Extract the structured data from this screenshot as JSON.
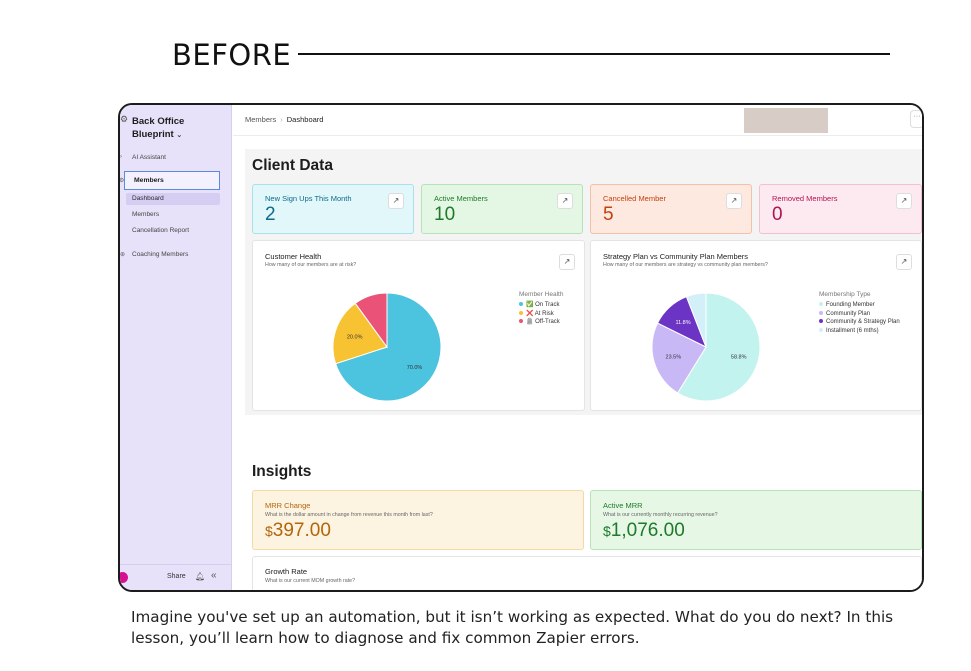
{
  "heading": "BEFORE",
  "caption": "Imagine you've set up an automation, but it isn’t working as expected. What do you do next? In this lesson, you’ll learn how to diagnose and fix common Zapier errors.",
  "sidebar": {
    "workspace": "Back Office Blueprint",
    "workspace_chevron": "⌄",
    "items": {
      "ai_assistant": "AI Assistant",
      "members": "Members",
      "dashboard": "Dashboard",
      "members_sub": "Members",
      "cancellation_report": "Cancellation Report",
      "coaching_members": "Coaching Members"
    },
    "share": "Share"
  },
  "breadcrumb": {
    "parent": "Members",
    "current": "Dashboard"
  },
  "client_data": {
    "title": "Client Data",
    "stats": [
      {
        "label": "New Sign Ups This Month",
        "value": "2",
        "color": "#0e6a8c",
        "bg": "#e1f7fa",
        "border": "#a9e1ea"
      },
      {
        "label": "Active Members",
        "value": "10",
        "color": "#1e7a2a",
        "bg": "#e4f7e4",
        "border": "#b5e3b6"
      },
      {
        "label": "Cancelled Member",
        "value": "5",
        "color": "#c2410c",
        "bg": "#fde9e0",
        "border": "#f3c1a9"
      },
      {
        "label": "Removed Members",
        "value": "0",
        "color": "#b3124e",
        "bg": "#fdeaf1",
        "border": "#f3c0d3"
      }
    ],
    "health_card": {
      "title": "Customer Health",
      "subtitle": "How many of our members are at risk?",
      "legend_title": "Member Health",
      "legend": [
        "✅ On Track",
        "❌ At Risk",
        "🪦 Off-Track"
      ]
    },
    "plan_card": {
      "title": "Strategy Plan vs Community Plan Members",
      "subtitle": "How many of our members are strategy vs community plan members?",
      "legend_title": "Membership Type",
      "legend": [
        "Founding Member",
        "Community Plan",
        "Community & Strategy Plan",
        "Installment (6 mths)"
      ]
    }
  },
  "insights": {
    "title": "Insights",
    "mrr_change": {
      "label": "MRR Change",
      "subtitle": "What is the dollar amount in change from revenue this month from last?",
      "currency": "$",
      "value": "397.00",
      "color": "#b3650a",
      "bg": "#fdf3e1",
      "border": "#f2d9a6"
    },
    "active_mrr": {
      "label": "Active MRR",
      "subtitle": "What is our currently monthly recurring revenue?",
      "currency": "$",
      "value": "1,076.00",
      "color": "#1e7a2a",
      "bg": "#e6f7e6",
      "border": "#b8e2b9"
    },
    "growth_rate": {
      "label": "Growth Rate",
      "subtitle": "What is our current MOM growth rate?"
    }
  },
  "chart_data": [
    {
      "type": "pie",
      "title": "Customer Health",
      "categories": [
        "On Track",
        "At Risk",
        "Off-Track"
      ],
      "values": [
        70.0,
        20.0,
        10.0
      ],
      "labels": [
        "70.0%",
        "20.0%",
        ""
      ],
      "colors": [
        "#4cc3df",
        "#f8c332",
        "#ea5377"
      ],
      "legend": "right"
    },
    {
      "type": "pie",
      "title": "Strategy Plan vs Community Plan Members",
      "categories": [
        "Founding Member",
        "Community Plan",
        "Community & Strategy Plan",
        "Installment (6 mths)"
      ],
      "values": [
        58.8,
        23.5,
        11.8,
        5.9
      ],
      "labels": [
        "58.8%",
        "23.5%",
        "11.8%",
        ""
      ],
      "colors": [
        "#c3f3ef",
        "#c9b8f6",
        "#6b34c4",
        "#d3f0f8"
      ],
      "legend": "right"
    }
  ]
}
